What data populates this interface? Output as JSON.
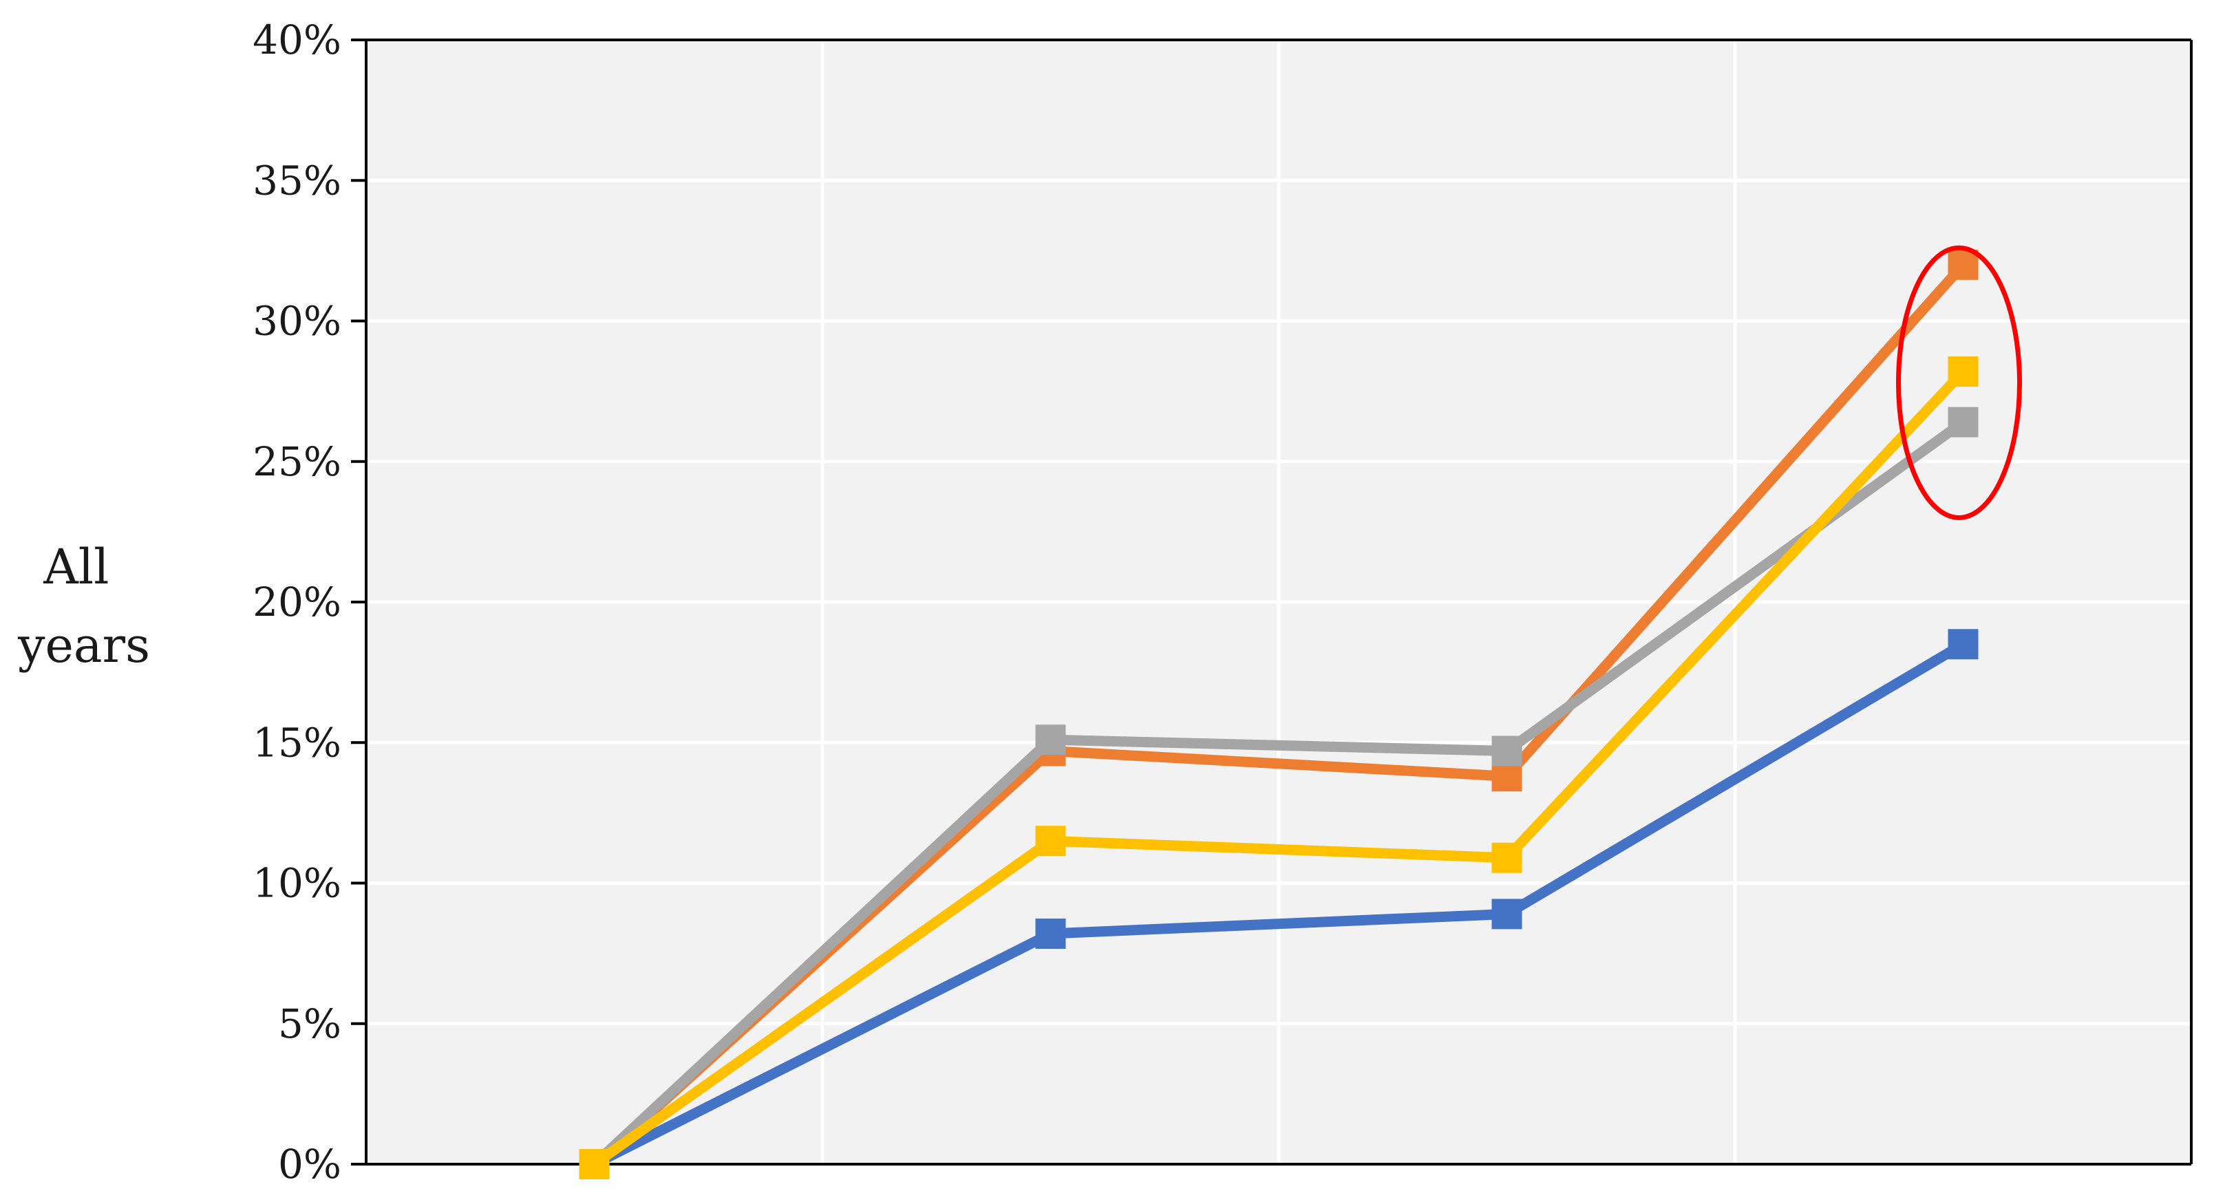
{
  "chart_data": {
    "type": "line",
    "title": "",
    "xlabel": "",
    "ylabel_lines": [
      "All",
      "years"
    ],
    "x_count": 4,
    "ylim": [
      0,
      0.4
    ],
    "y_ticks": [
      {
        "value": 0,
        "label": "0%"
      },
      {
        "value": 0.05,
        "label": "5%"
      },
      {
        "value": 0.1,
        "label": "10%"
      },
      {
        "value": 0.15,
        "label": "15%"
      },
      {
        "value": 0.2,
        "label": "20%"
      },
      {
        "value": 0.25,
        "label": "25%"
      },
      {
        "value": 0.3,
        "label": "30%"
      },
      {
        "value": 0.35,
        "label": "35%"
      },
      {
        "value": 0.4,
        "label": "40%"
      }
    ],
    "grid": true,
    "legend": "none",
    "plot_background": "#f2f2f2",
    "series": [
      {
        "color": "#4472c4",
        "values": [
          0,
          0.082,
          0.089,
          0.185
        ]
      },
      {
        "color": "#ed7d31",
        "values": [
          0,
          0.147,
          0.138,
          0.32
        ]
      },
      {
        "color": "#a5a5a5",
        "values": [
          0,
          0.151,
          0.147,
          0.264
        ]
      },
      {
        "color": "#ffc000",
        "values": [
          0,
          0.115,
          0.109,
          0.282
        ]
      }
    ],
    "annotations": [
      {
        "type": "ellipse",
        "color": "#ff0000",
        "x_index": 3,
        "y_center": 0.278,
        "y_half_extent": 0.048
      }
    ]
  }
}
